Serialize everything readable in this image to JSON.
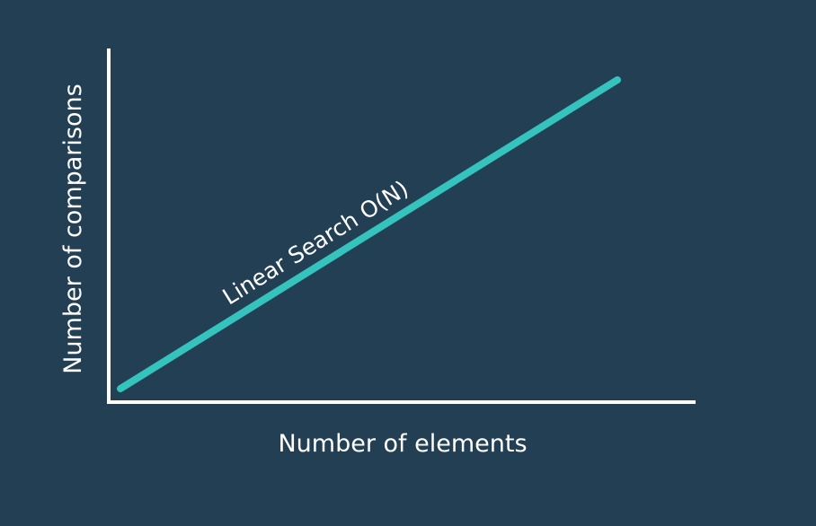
{
  "chart_data": {
    "type": "line",
    "title": "",
    "xlabel": "Number of elements",
    "ylabel": "Number of comparisons",
    "grid": false,
    "legend": "none",
    "xlim": [
      0,
      1
    ],
    "ylim": [
      0,
      1
    ],
    "series": [
      {
        "name": "Linear Search O(N)",
        "x": [
          0,
          1
        ],
        "y": [
          0,
          1
        ],
        "color": "#34c3bd"
      }
    ]
  },
  "colors": {
    "background": "#223f54",
    "axes": "#ffffff",
    "series": "#34c3bd"
  }
}
